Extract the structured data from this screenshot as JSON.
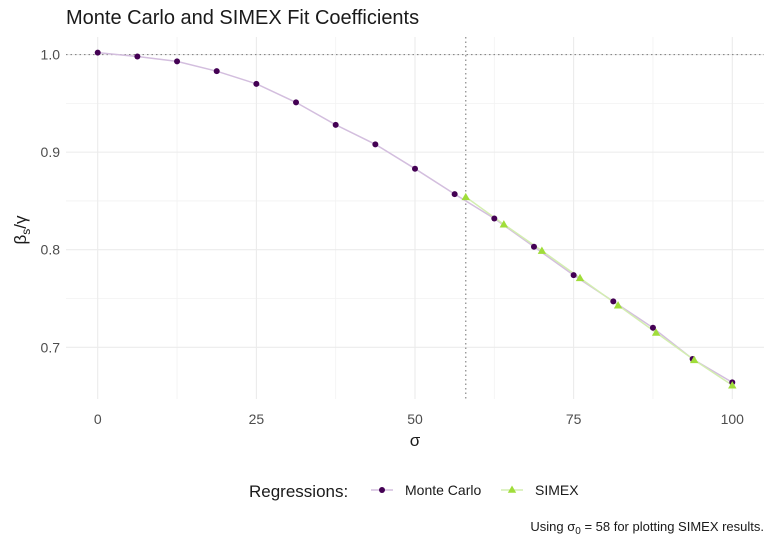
{
  "chart_data": {
    "type": "line",
    "title": "Monte Carlo and SIMEX Fit Coefficients",
    "xlabel": "σ",
    "ylabel_main": "β",
    "ylabel_sub": "s",
    "ylabel_tail": "/γ",
    "xlim": [
      -5,
      105
    ],
    "ylim": [
      0.647,
      1.018
    ],
    "x_ticks": [
      0,
      25,
      50,
      75,
      100
    ],
    "x_tick_labels": [
      "0",
      "25",
      "50",
      "75",
      "100"
    ],
    "x_minor_ticks": [
      12.5,
      37.5,
      62.5,
      87.5
    ],
    "y_ticks": [
      0.7,
      0.8,
      0.9,
      1.0
    ],
    "y_tick_labels": [
      "0.7",
      "0.8",
      "0.9",
      "1.0"
    ],
    "y_minor_ticks": [
      0.75,
      0.85,
      0.95
    ],
    "grid": true,
    "reference_lines": {
      "horizontal_y": 1.0,
      "vertical_x": 58
    },
    "legend_placement": "bottom",
    "legend_title": "Regressions:",
    "series": [
      {
        "name": "Monte Carlo",
        "color": "#440154",
        "line_color": "#d3bede",
        "marker": "circle",
        "x": [
          0,
          6.25,
          12.5,
          18.75,
          25,
          31.25,
          37.5,
          43.75,
          50,
          56.25,
          62.5,
          68.75,
          75,
          81.25,
          87.5,
          93.75,
          100
        ],
        "values": [
          1.002,
          0.998,
          0.993,
          0.983,
          0.97,
          0.951,
          0.928,
          0.908,
          0.883,
          0.857,
          0.832,
          0.803,
          0.774,
          0.747,
          0.72,
          0.688,
          0.664
        ]
      },
      {
        "name": "SIMEX",
        "color": "#a0dd3a",
        "line_color": "#d3eeb0",
        "marker": "triangle",
        "x": [
          58,
          64,
          70,
          76,
          82,
          88,
          94,
          100
        ],
        "values": [
          0.854,
          0.826,
          0.799,
          0.771,
          0.743,
          0.715,
          0.687,
          0.661
        ]
      }
    ],
    "caption_prefix": "Using σ",
    "caption_sub": "0",
    "caption_suffix": " = 58 for plotting SIMEX results."
  }
}
